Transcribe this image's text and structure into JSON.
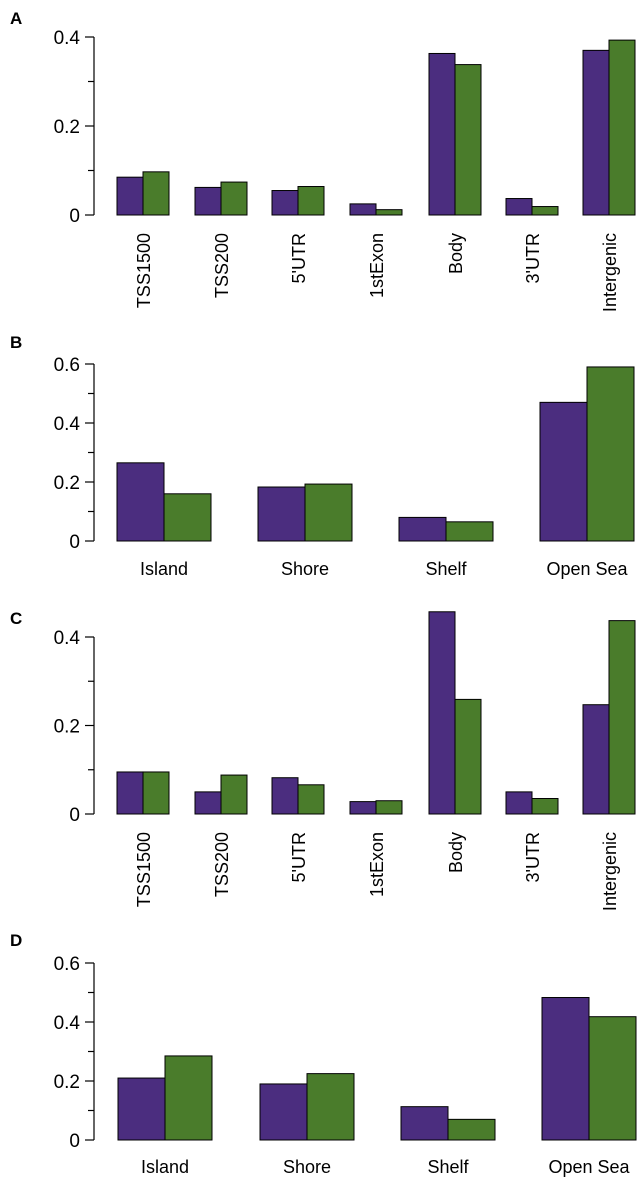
{
  "colors": {
    "series1": "#4b2d7f",
    "series2": "#4a7c2b"
  },
  "chart_data": [
    {
      "type": "bar",
      "panel_label": "A",
      "categories": [
        "TSS1500",
        "TSS200",
        "5'UTR",
        "1stExon",
        "Body",
        "3'UTR",
        "Intergenic"
      ],
      "series": [
        {
          "values": [
            0.085,
            0.062,
            0.055,
            0.025,
            0.363,
            0.037,
            0.37
          ]
        },
        {
          "values": [
            0.097,
            0.074,
            0.064,
            0.012,
            0.338,
            0.019,
            0.393
          ]
        }
      ],
      "yticks": [
        0,
        0.2,
        0.4
      ],
      "ytick_labels": [
        "0",
        "0.2",
        "0.4"
      ],
      "ylim": [
        0,
        0.4
      ],
      "rotated_labels": true
    },
    {
      "type": "bar",
      "panel_label": "B",
      "categories": [
        "Island",
        "Shore",
        "Shelf",
        "Open Sea"
      ],
      "series": [
        {
          "values": [
            0.265,
            0.183,
            0.08,
            0.47
          ]
        },
        {
          "values": [
            0.16,
            0.193,
            0.065,
            0.59
          ]
        }
      ],
      "yticks": [
        0,
        0.2,
        0.4,
        0.6
      ],
      "ytick_labels": [
        "0",
        "0.2",
        "0.4",
        "0.6"
      ],
      "ylim": [
        0,
        0.6
      ],
      "rotated_labels": false
    },
    {
      "type": "bar",
      "panel_label": "C",
      "categories": [
        "TSS1500",
        "TSS200",
        "5'UTR",
        "1stExon",
        "Body",
        "3'UTR",
        "Intergenic"
      ],
      "series": [
        {
          "values": [
            0.095,
            0.05,
            0.082,
            0.028,
            0.457,
            0.05,
            0.247
          ]
        },
        {
          "values": [
            0.095,
            0.088,
            0.066,
            0.03,
            0.259,
            0.035,
            0.437
          ]
        }
      ],
      "yticks": [
        0,
        0.2,
        0.4
      ],
      "ytick_labels": [
        "0",
        "0.2",
        "0.4"
      ],
      "ylim": [
        0,
        0.4
      ],
      "rotated_labels": true
    },
    {
      "type": "bar",
      "panel_label": "D",
      "categories": [
        "Island",
        "Shore",
        "Shelf",
        "Open Sea"
      ],
      "series": [
        {
          "values": [
            0.21,
            0.19,
            0.113,
            0.483
          ]
        },
        {
          "values": [
            0.285,
            0.225,
            0.07,
            0.418
          ]
        }
      ],
      "yticks": [
        0,
        0.2,
        0.4,
        0.6
      ],
      "ytick_labels": [
        "0",
        "0.2",
        "0.4",
        "0.6"
      ],
      "ylim": [
        0,
        0.6
      ],
      "rotated_labels": false
    }
  ]
}
